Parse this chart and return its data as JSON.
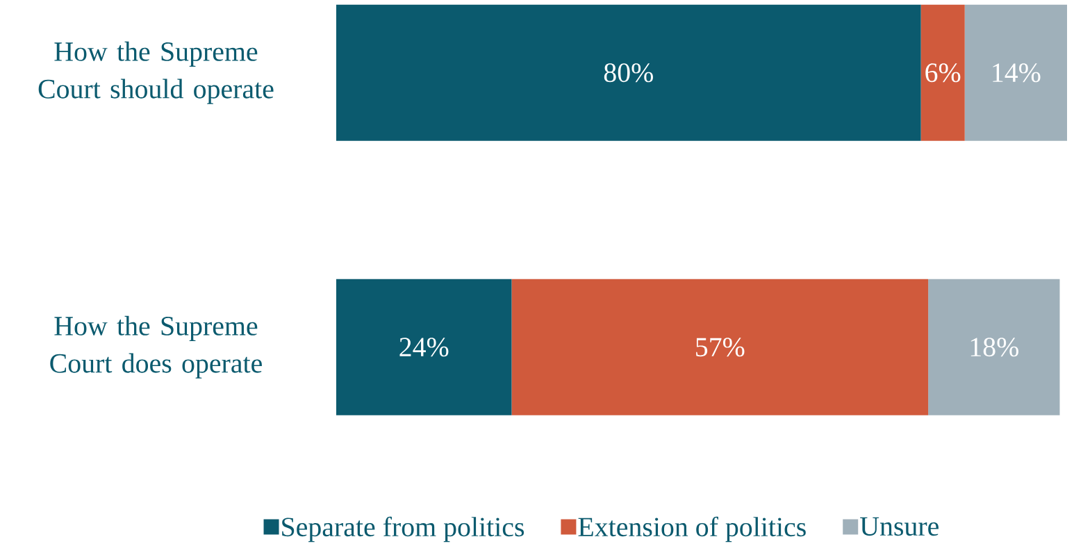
{
  "chart_data": {
    "type": "bar",
    "orientation": "horizontal",
    "stacked": true,
    "categories": [
      "How the Supreme Court should operate",
      "How the Supreme Court does operate"
    ],
    "xlim": [
      0,
      100
    ],
    "series": [
      {
        "name": "Separate from politics",
        "color": "#0b5a6e",
        "values": [
          80,
          24
        ],
        "value_labels": [
          "80%",
          "24%"
        ]
      },
      {
        "name": "Extension of politics",
        "color": "#d05a3c",
        "values": [
          6,
          57
        ],
        "value_labels": [
          "6%",
          "57%"
        ]
      },
      {
        "name": "Unsure",
        "color": "#9fb0ba",
        "values": [
          14,
          18
        ],
        "value_labels": [
          "14%",
          "18%"
        ]
      }
    ],
    "legend": "bottom"
  }
}
